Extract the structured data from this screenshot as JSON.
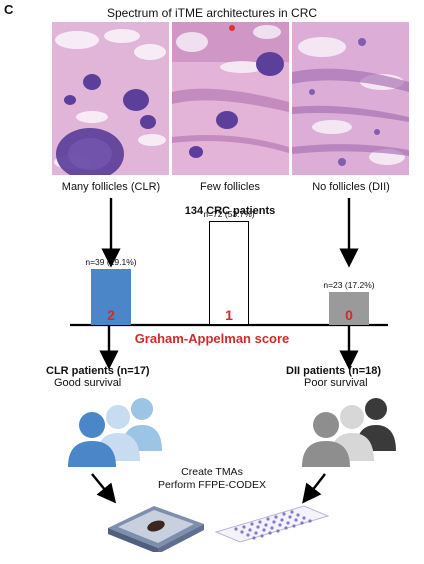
{
  "panel_label": "C",
  "title": "Spectrum of iTME architectures in CRC",
  "panels": [
    {
      "caption": "Many follicles (CLR)"
    },
    {
      "caption": "Few follicles"
    },
    {
      "caption": "No follicles (DII)"
    }
  ],
  "cohort_label": "134 CRC patients",
  "chart_data": {
    "type": "bar",
    "categories": [
      "2",
      "1",
      "0"
    ],
    "values": [
      39,
      72,
      23
    ],
    "percents": [
      29.1,
      53.7,
      17.2
    ],
    "data_labels": [
      "n=39 (29.1%)",
      "n=72 (53.7%)",
      "n=23 (17.2%)"
    ],
    "colors": [
      "#4a86c8",
      "#ffffff",
      "#9a9a9a"
    ],
    "xlabel": "Graham-Appelman score"
  },
  "groups": {
    "clr": {
      "title": "CLR patients (n=17)",
      "subtitle": "Good survival"
    },
    "dii": {
      "title": "DII patients (n=18)",
      "subtitle": "Poor survival"
    }
  },
  "tma_lines": [
    "Create TMAs",
    "Perform FFPE-CODEX"
  ],
  "colors": {
    "accent_red": "#d42a2a",
    "clr_blue": "#4a86c8",
    "dii_gray": "#9a9a9a",
    "he_pink": "#d9a6cf",
    "he_purple": "#5b3f9a"
  }
}
